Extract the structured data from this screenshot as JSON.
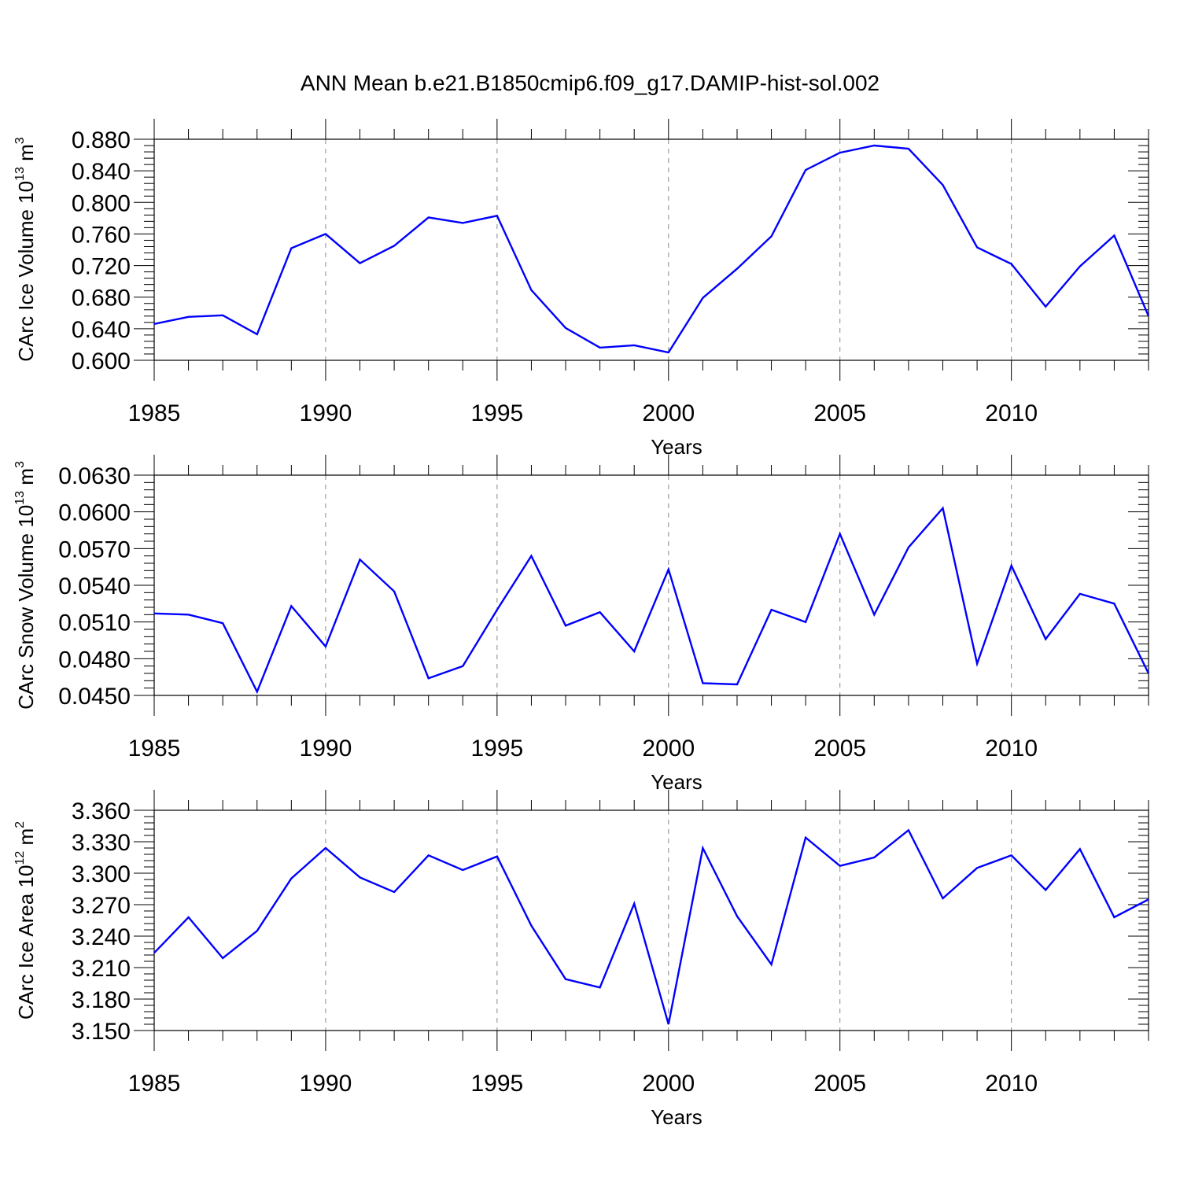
{
  "figure_title": "ANN Mean b.e21.B1850cmip6.f09_g17.DAMIP-hist-sol.002",
  "colors": {
    "line": "#0000ff",
    "axis": "#000000",
    "grid": "#888888"
  },
  "chart_data": [
    {
      "type": "line",
      "title": "ANN Mean b.e21.B1850cmip6.f09_g17.DAMIP-hist-sol.002",
      "xlabel": "Years",
      "ylabel": {
        "main": "CArc Ice Volume 10",
        "exp": "13",
        "unit": " m",
        "unit_exp": "3"
      },
      "x": [
        1985,
        1986,
        1987,
        1988,
        1989,
        1990,
        1991,
        1992,
        1993,
        1994,
        1995,
        1996,
        1997,
        1998,
        1999,
        2000,
        2001,
        2002,
        2003,
        2004,
        2005,
        2006,
        2007,
        2008,
        2009,
        2010,
        2011,
        2012,
        2013,
        2014
      ],
      "values": [
        0.646,
        0.655,
        0.657,
        0.633,
        0.742,
        0.76,
        0.723,
        0.745,
        0.781,
        0.774,
        0.783,
        0.689,
        0.641,
        0.616,
        0.619,
        0.61,
        0.679,
        0.716,
        0.757,
        0.841,
        0.863,
        0.872,
        0.868,
        0.822,
        0.743,
        0.722,
        0.668,
        0.719,
        0.758,
        0.656
      ],
      "xlim": [
        1985,
        2014
      ],
      "ylim": [
        0.6,
        0.88
      ],
      "yticks": [
        0.6,
        0.64,
        0.68,
        0.72,
        0.76,
        0.8,
        0.84,
        0.88
      ],
      "yticklabels": [
        "0.600",
        "0.640",
        "0.680",
        "0.720",
        "0.760",
        "0.800",
        "0.840",
        "0.880"
      ],
      "xticks": [
        1985,
        1990,
        1995,
        2000,
        2005,
        2010
      ],
      "xticklabels": [
        "1985",
        "1990",
        "1995",
        "2000",
        "2005",
        "2010"
      ],
      "grid": "vertical dashed at major x ticks"
    },
    {
      "type": "line",
      "xlabel": "Years",
      "ylabel": {
        "main": "CArc Snow Volume 10",
        "exp": "13",
        "unit": " m",
        "unit_exp": "3"
      },
      "x": [
        1985,
        1986,
        1987,
        1988,
        1989,
        1990,
        1991,
        1992,
        1993,
        1994,
        1995,
        1996,
        1997,
        1998,
        1999,
        2000,
        2001,
        2002,
        2003,
        2004,
        2005,
        2006,
        2007,
        2008,
        2009,
        2010,
        2011,
        2012,
        2013,
        2014
      ],
      "values": [
        0.0517,
        0.0516,
        0.0509,
        0.0453,
        0.0523,
        0.049,
        0.0561,
        0.0535,
        0.0464,
        0.0474,
        0.052,
        0.0564,
        0.0507,
        0.0518,
        0.0486,
        0.0553,
        0.046,
        0.0459,
        0.052,
        0.051,
        0.0582,
        0.0516,
        0.0571,
        0.0603,
        0.0476,
        0.0556,
        0.0496,
        0.0533,
        0.0525,
        0.0468
      ],
      "xlim": [
        1985,
        2014
      ],
      "ylim": [
        0.045,
        0.063
      ],
      "yticks": [
        0.045,
        0.048,
        0.051,
        0.054,
        0.057,
        0.06,
        0.063
      ],
      "yticklabels": [
        "0.0450",
        "0.0480",
        "0.0510",
        "0.0540",
        "0.0570",
        "0.0600",
        "0.0630"
      ],
      "xticks": [
        1985,
        1990,
        1995,
        2000,
        2005,
        2010
      ],
      "xticklabels": [
        "1985",
        "1990",
        "1995",
        "2000",
        "2005",
        "2010"
      ],
      "grid": "vertical dashed at major x ticks"
    },
    {
      "type": "line",
      "xlabel": "Years",
      "ylabel": {
        "main": "CArc Ice Area 10",
        "exp": "12",
        "unit": " m",
        "unit_exp": "2"
      },
      "x": [
        1985,
        1986,
        1987,
        1988,
        1989,
        1990,
        1991,
        1992,
        1993,
        1994,
        1995,
        1996,
        1997,
        1998,
        1999,
        2000,
        2001,
        2002,
        2003,
        2004,
        2005,
        2006,
        2007,
        2008,
        2009,
        2010,
        2011,
        2012,
        2013,
        2014
      ],
      "values": [
        3.224,
        3.258,
        3.219,
        3.245,
        3.295,
        3.324,
        3.296,
        3.282,
        3.317,
        3.303,
        3.316,
        3.25,
        3.199,
        3.191,
        3.271,
        3.156,
        3.324,
        3.259,
        3.213,
        3.334,
        3.307,
        3.315,
        3.341,
        3.276,
        3.305,
        3.317,
        3.284,
        3.323,
        3.258,
        3.275
      ],
      "xlim": [
        1985,
        2014
      ],
      "ylim": [
        3.15,
        3.36
      ],
      "yticks": [
        3.15,
        3.18,
        3.21,
        3.24,
        3.27,
        3.3,
        3.33,
        3.36
      ],
      "yticklabels": [
        "3.150",
        "3.180",
        "3.210",
        "3.240",
        "3.270",
        "3.300",
        "3.330",
        "3.360"
      ],
      "xticks": [
        1985,
        1990,
        1995,
        2000,
        2005,
        2010
      ],
      "xticklabels": [
        "1985",
        "1990",
        "1995",
        "2000",
        "2005",
        "2010"
      ],
      "grid": "vertical dashed at major x ticks"
    }
  ]
}
